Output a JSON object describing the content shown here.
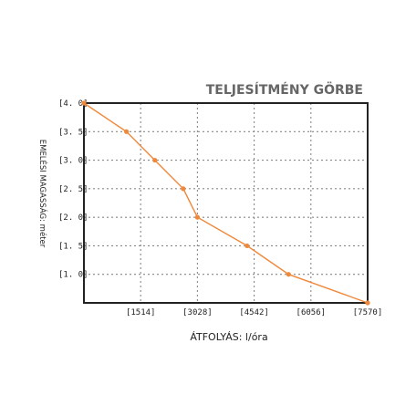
{
  "chart_data": {
    "type": "line",
    "title": "TELJESÍTMÉNY GÖRBE",
    "xlabel": "ÁTFOLYÁS: l/óra",
    "ylabel": "EMELÉSI MAGASSÁG: méter",
    "x_tick_labels": [
      "[1514]",
      "[3028]",
      "[4542]",
      "[6056]",
      "[7570]"
    ],
    "x_ticks": [
      1514,
      3028,
      4542,
      6056,
      7570
    ],
    "y_tick_labels": [
      "[4. 0]",
      "[3. 5]",
      "[3. 0]",
      "[2. 5]",
      "[2. 0]",
      "[1. 5]",
      "[1. 0]"
    ],
    "y_ticks": [
      4.0,
      3.5,
      3.0,
      2.5,
      2.0,
      1.5,
      1.0
    ],
    "xlim": [
      0,
      7570
    ],
    "ylim": [
      0.5,
      4.0
    ],
    "grid": true,
    "grid_style": "dotted",
    "line_color": "#f0883a",
    "series": [
      {
        "x": [
          0,
          1135,
          1892,
          2650,
          3028,
          4352,
          5460,
          7570
        ],
        "y": [
          4.0,
          3.5,
          3.0,
          2.5,
          2.0,
          1.5,
          1.0,
          0.5
        ]
      }
    ]
  }
}
